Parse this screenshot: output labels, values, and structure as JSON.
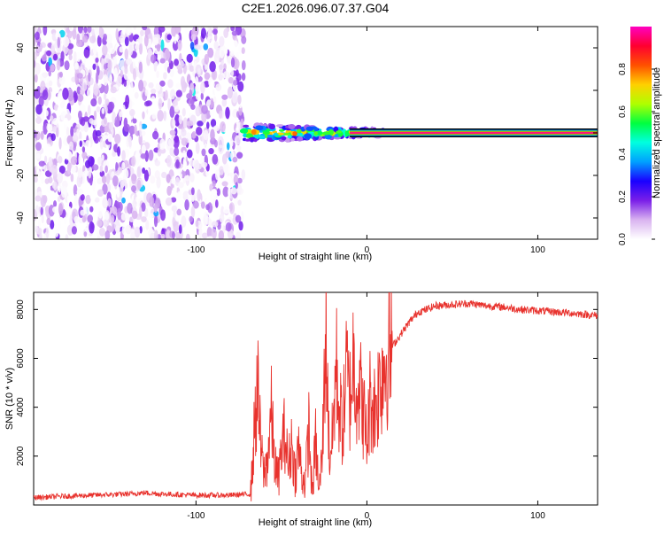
{
  "title": "C2E1.2026.096.07.37.G04",
  "chart_data": [
    {
      "type": "heatmap",
      "xlabel": "Height of straight line (km)",
      "ylabel": "Frequency (Hz)",
      "xlim": [
        -195,
        135
      ],
      "ylim": [
        -50,
        50
      ],
      "x_ticks": [
        -100,
        0,
        100
      ],
      "x_tick_labels": [
        "-100",
        "0",
        "100"
      ],
      "y_ticks": [
        -40,
        -20,
        0,
        20,
        40
      ],
      "y_tick_labels": [
        "-40",
        "-20",
        "0",
        "20",
        "40"
      ],
      "colorbar": {
        "label": "Normalized spectral amplitude",
        "range": [
          0,
          1
        ],
        "ticks": [
          0.0,
          0.2,
          0.4,
          0.6,
          0.8
        ],
        "tick_labels": [
          "0.0",
          "0.2",
          "0.4",
          "0.6",
          "0.8"
        ],
        "colormap": [
          "#ffffff",
          "#d9b3f0",
          "#7a1fe8",
          "#1a00ff",
          "#00a0ff",
          "#00ffe0",
          "#00ff40",
          "#b0ff00",
          "#ffd000",
          "#ff5000",
          "#ff0030",
          "#ff00c0"
        ]
      },
      "regions": [
        {
          "name": "noise",
          "x_range": [
            -195,
            -72
          ],
          "f_range": [
            -50,
            50
          ],
          "amplitude": [
            0.0,
            0.2
          ]
        },
        {
          "name": "transition",
          "x_range": [
            -72,
            10
          ],
          "f_range": [
            -4,
            4
          ],
          "amplitude": [
            0.1,
            0.9
          ]
        },
        {
          "name": "carrier-line",
          "x_range": [
            -10,
            135
          ],
          "f_center": 0,
          "amplitude": 1.0
        }
      ]
    },
    {
      "type": "line",
      "xlabel": "Height of straight line (km)",
      "ylabel": "SNR (10 * v/v)",
      "xlim": [
        -195,
        135
      ],
      "ylim": [
        0,
        8700
      ],
      "x_ticks": [
        -100,
        0,
        100
      ],
      "x_tick_labels": [
        "-100",
        "0",
        "100"
      ],
      "y_ticks": [
        2000,
        4000,
        6000,
        8000
      ],
      "y_tick_labels": [
        "2000",
        "4000",
        "6000",
        "8000"
      ],
      "color": "#e8322d",
      "series": [
        {
          "name": "SNR",
          "x": [
            -195,
            -180,
            -160,
            -140,
            -130,
            -120,
            -100,
            -80,
            -68,
            -66,
            -64,
            -62,
            -60,
            -58,
            -56,
            -54,
            -52,
            -50,
            -48,
            -46,
            -44,
            -42,
            -40,
            -38,
            -36,
            -34,
            -32,
            -30,
            -28,
            -26,
            -24,
            -22,
            -20,
            -18,
            -16,
            -14,
            -12,
            -10,
            -8,
            -6,
            -4,
            -2,
            0,
            2,
            4,
            6,
            8,
            10,
            15,
            20,
            25,
            30,
            35,
            40,
            50,
            60,
            70,
            80,
            90,
            100,
            110,
            120,
            135
          ],
          "y": [
            300,
            350,
            400,
            450,
            500,
            450,
            400,
            400,
            450,
            2800,
            4900,
            2200,
            1200,
            2000,
            3800,
            1800,
            1000,
            2200,
            3000,
            1500,
            2600,
            1200,
            2400,
            1200,
            900,
            3200,
            400,
            2600,
            500,
            2200,
            7500,
            2000,
            2800,
            5800,
            3800,
            3200,
            5600,
            4200,
            6000,
            5000,
            4700,
            3800,
            2500,
            4500,
            3900,
            4400,
            5200,
            5800,
            6500,
            7000,
            7500,
            7900,
            8000,
            8150,
            8200,
            8250,
            8150,
            8100,
            8000,
            7950,
            7900,
            7850,
            7750
          ]
        }
      ]
    }
  ]
}
